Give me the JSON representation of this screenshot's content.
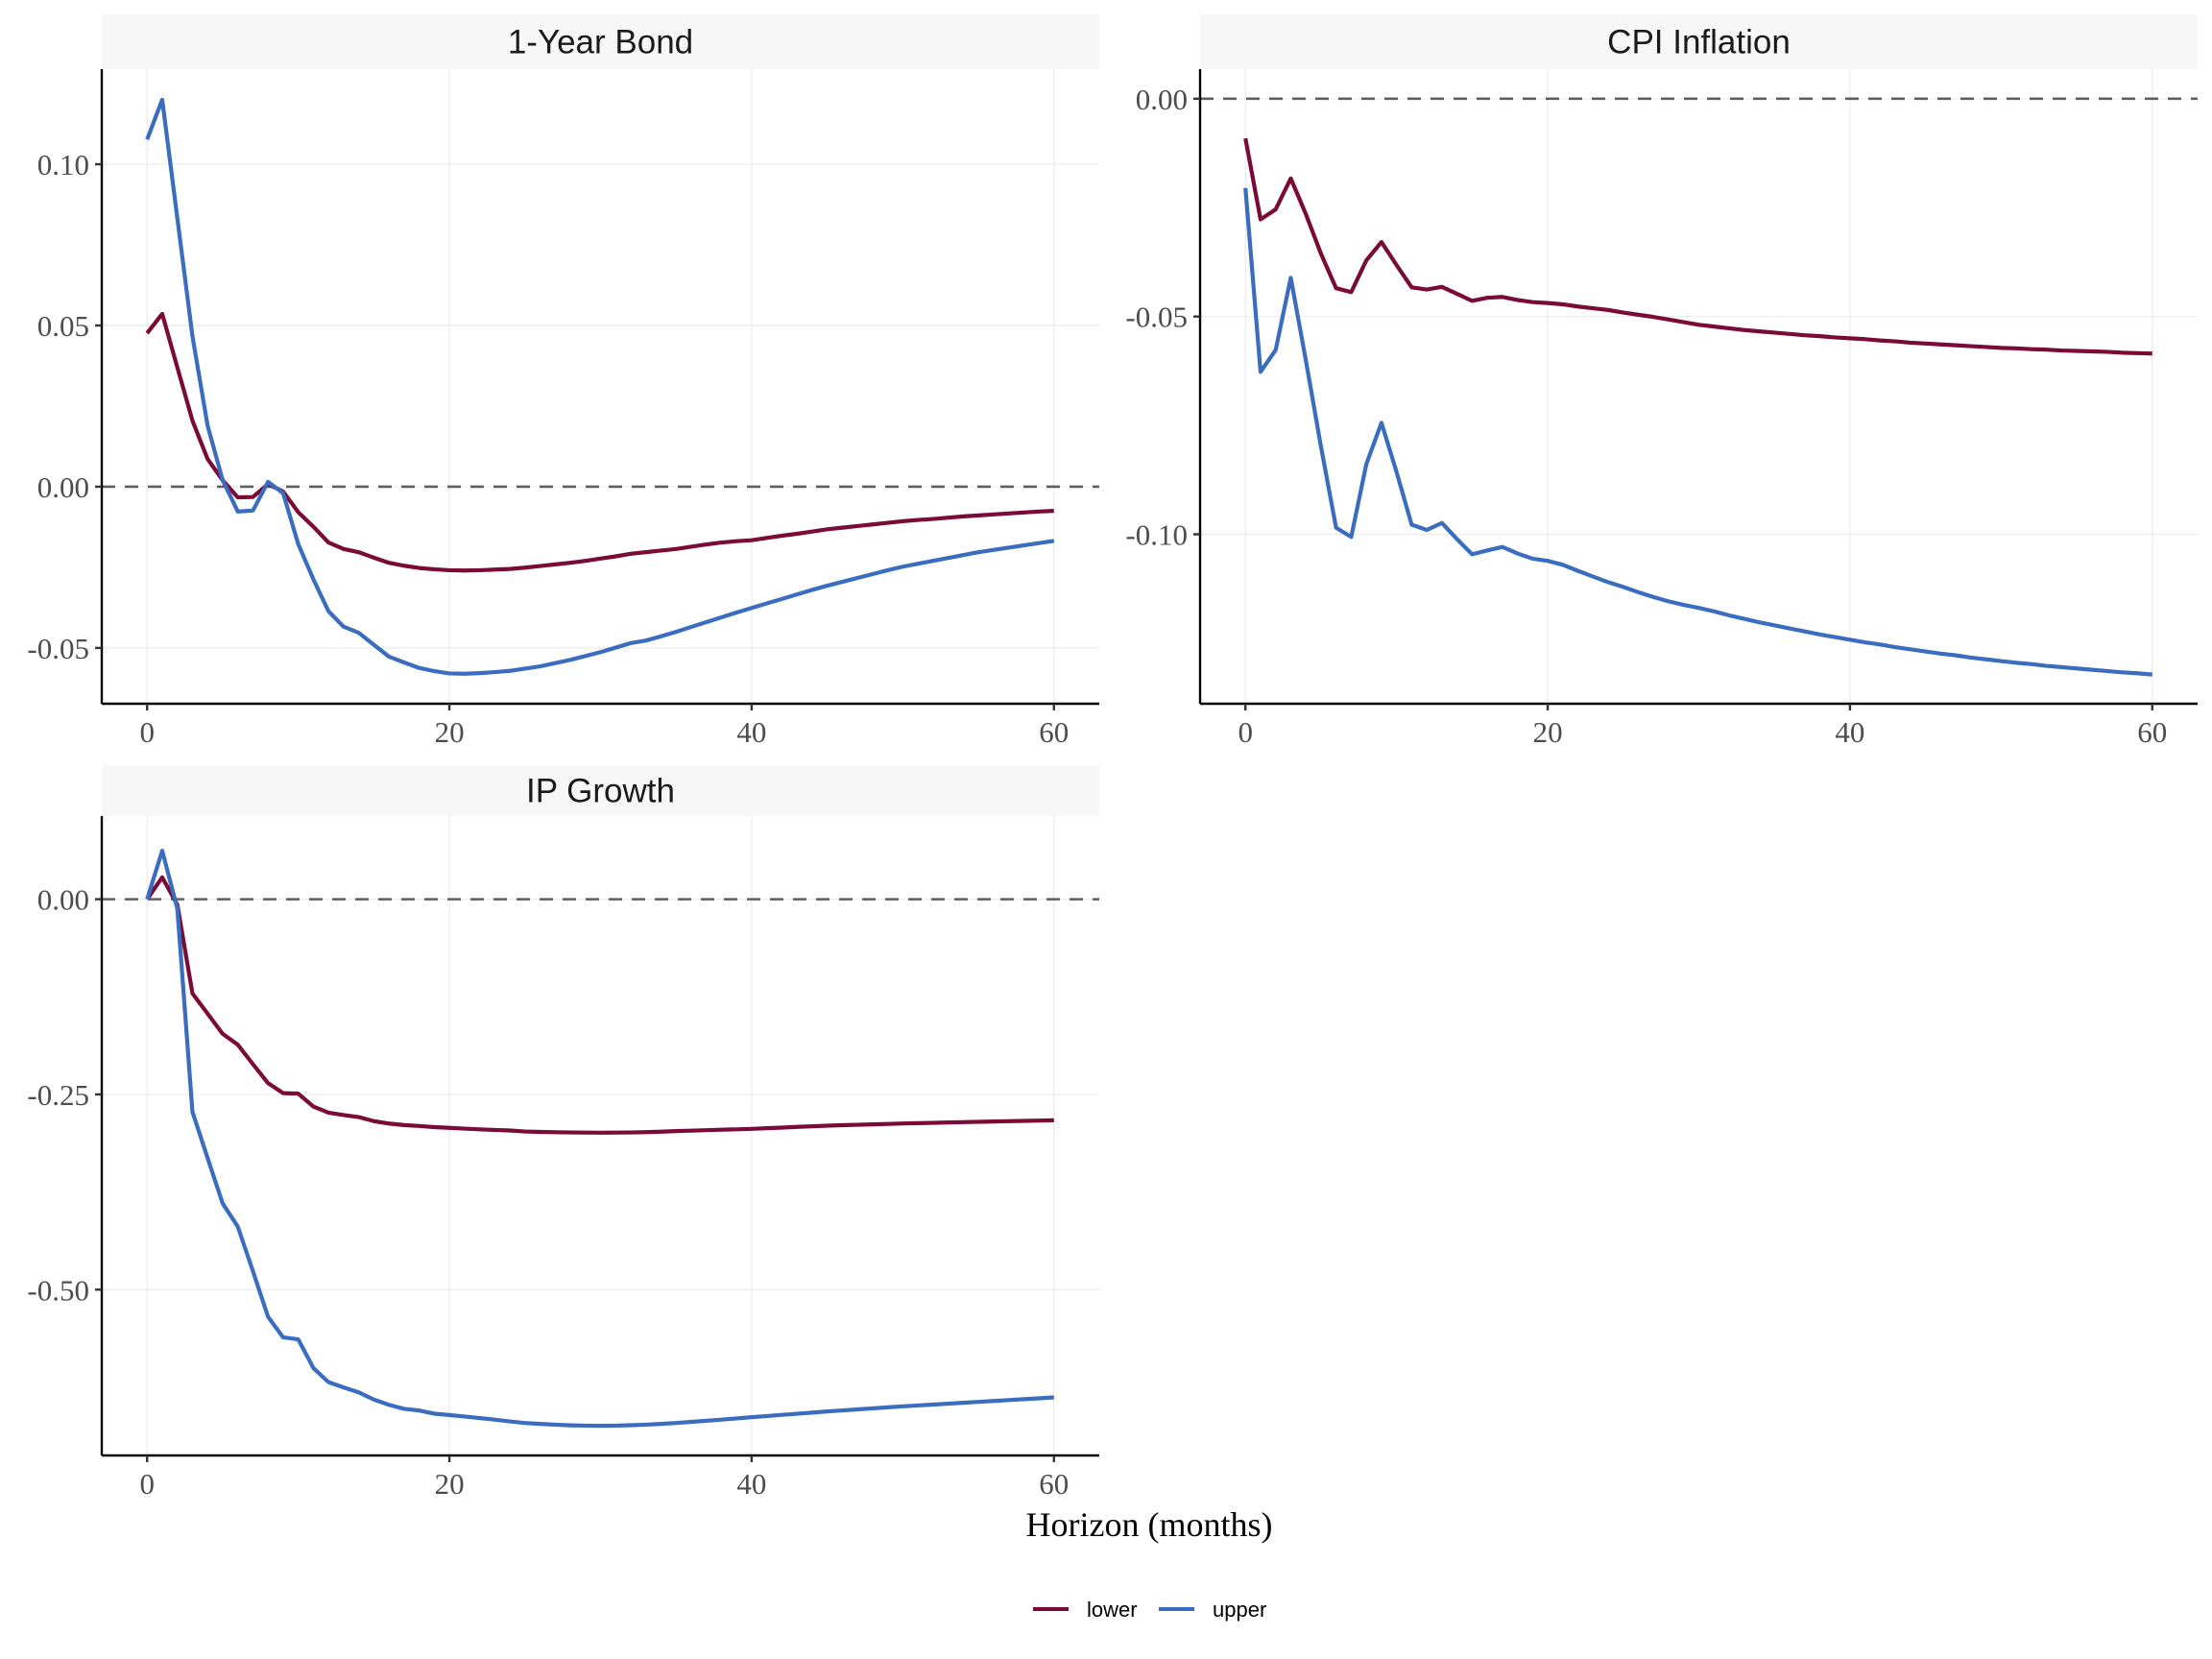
{
  "chart_data": [
    {
      "type": "line",
      "title": "1-Year Bond",
      "xlabel": "Horizon (months)",
      "ylabel": "",
      "xlim": [
        -3,
        63
      ],
      "ylim": [
        -0.0673,
        0.1295
      ],
      "xticks": [
        0,
        20,
        40,
        60
      ],
      "xtick_labels": [
        "0",
        "20",
        "40",
        "60"
      ],
      "yticks": [
        -0.05,
        0.0,
        0.05,
        0.1
      ],
      "ytick_labels": [
        "-0.05",
        "0.00",
        "0.05",
        "0.10"
      ],
      "grid": true,
      "reference_line": 0,
      "x": [
        0,
        1,
        2,
        3,
        4,
        5,
        6,
        7,
        8,
        9,
        10,
        11,
        12,
        13,
        14,
        15,
        16,
        17,
        18,
        19,
        20,
        21,
        22,
        23,
        24,
        25,
        26,
        27,
        28,
        29,
        30,
        31,
        32,
        33,
        34,
        35,
        36,
        37,
        38,
        39,
        40,
        41,
        42,
        43,
        44,
        45,
        46,
        47,
        48,
        49,
        50,
        51,
        52,
        53,
        54,
        55,
        56,
        57,
        58,
        59,
        60
      ],
      "series": [
        {
          "name": "lower",
          "color": "#7A0A36",
          "values": [
            0.0476,
            0.0536,
            0.037,
            0.0205,
            0.0086,
            0.002,
            -0.0033,
            -0.0032,
            0.0008,
            -0.0015,
            -0.0079,
            -0.0124,
            -0.0173,
            -0.0193,
            -0.0203,
            -0.022,
            -0.0236,
            -0.0245,
            -0.0252,
            -0.0256,
            -0.0259,
            -0.026,
            -0.0259,
            -0.0257,
            -0.0255,
            -0.0251,
            -0.0246,
            -0.0241,
            -0.0236,
            -0.023,
            -0.0223,
            -0.0216,
            -0.0208,
            -0.0203,
            -0.0198,
            -0.0193,
            -0.0186,
            -0.0179,
            -0.0173,
            -0.0169,
            -0.0166,
            -0.0159,
            -0.0152,
            -0.0146,
            -0.0139,
            -0.0132,
            -0.0127,
            -0.0122,
            -0.0117,
            -0.0112,
            -0.0107,
            -0.0103,
            -0.01,
            -0.0096,
            -0.0092,
            -0.0089,
            -0.0086,
            -0.0083,
            -0.008,
            -0.0077,
            -0.0075
          ]
        },
        {
          "name": "upper",
          "color": "#3A6DBF",
          "values": [
            0.1077,
            0.12,
            0.0833,
            0.0467,
            0.019,
            0.002,
            -0.0077,
            -0.0074,
            0.0015,
            -0.002,
            -0.0178,
            -0.0287,
            -0.0386,
            -0.0434,
            -0.0453,
            -0.049,
            -0.0527,
            -0.0545,
            -0.0562,
            -0.0572,
            -0.0579,
            -0.058,
            -0.0578,
            -0.0575,
            -0.0571,
            -0.0564,
            -0.0557,
            -0.0547,
            -0.0537,
            -0.0525,
            -0.0513,
            -0.0499,
            -0.0485,
            -0.0477,
            -0.0464,
            -0.045,
            -0.0435,
            -0.042,
            -0.0405,
            -0.039,
            -0.0376,
            -0.0362,
            -0.0348,
            -0.0334,
            -0.032,
            -0.0307,
            -0.0295,
            -0.0283,
            -0.0271,
            -0.0259,
            -0.0248,
            -0.0239,
            -0.023,
            -0.0221,
            -0.0212,
            -0.0203,
            -0.0196,
            -0.0189,
            -0.0182,
            -0.0175,
            -0.0168
          ]
        }
      ]
    },
    {
      "type": "line",
      "title": "CPI Inflation",
      "xlabel": "Horizon (months)",
      "ylabel": "",
      "xlim": [
        -3,
        63
      ],
      "ylim": [
        -0.1389,
        0.0068
      ],
      "xticks": [
        0,
        20,
        40,
        60
      ],
      "xtick_labels": [
        "0",
        "20",
        "40",
        "60"
      ],
      "yticks": [
        -0.1,
        -0.05,
        0.0
      ],
      "ytick_labels": [
        "-0.10",
        "-0.05",
        "0.00"
      ],
      "grid": true,
      "reference_line": 0,
      "x": [
        0,
        1,
        2,
        3,
        4,
        5,
        6,
        7,
        8,
        9,
        10,
        11,
        12,
        13,
        14,
        15,
        16,
        17,
        18,
        19,
        20,
        21,
        22,
        23,
        24,
        25,
        26,
        27,
        28,
        29,
        30,
        31,
        32,
        33,
        34,
        35,
        36,
        37,
        38,
        39,
        40,
        41,
        42,
        43,
        44,
        45,
        46,
        47,
        48,
        49,
        50,
        51,
        52,
        53,
        54,
        55,
        56,
        57,
        58,
        59,
        60
      ],
      "series": [
        {
          "name": "lower",
          "color": "#7A0A36",
          "values": [
            -0.0091,
            -0.0277,
            -0.0254,
            -0.0183,
            -0.0265,
            -0.0356,
            -0.0435,
            -0.0444,
            -0.0371,
            -0.0329,
            -0.0382,
            -0.0433,
            -0.0438,
            -0.0432,
            -0.0448,
            -0.0464,
            -0.0457,
            -0.0455,
            -0.0462,
            -0.0467,
            -0.0469,
            -0.0472,
            -0.0477,
            -0.0481,
            -0.0485,
            -0.0491,
            -0.0496,
            -0.0501,
            -0.0507,
            -0.0513,
            -0.0519,
            -0.0523,
            -0.0527,
            -0.0531,
            -0.0534,
            -0.0537,
            -0.054,
            -0.0543,
            -0.0545,
            -0.0548,
            -0.055,
            -0.0552,
            -0.0555,
            -0.0557,
            -0.056,
            -0.0562,
            -0.0564,
            -0.0566,
            -0.0568,
            -0.057,
            -0.0572,
            -0.0573,
            -0.0575,
            -0.0576,
            -0.0578,
            -0.0579,
            -0.058,
            -0.0581,
            -0.0583,
            -0.0584,
            -0.0585
          ]
        },
        {
          "name": "upper",
          "color": "#3A6DBF",
          "values": [
            -0.0205,
            -0.0627,
            -0.0577,
            -0.0411,
            -0.0601,
            -0.0799,
            -0.0985,
            -0.1006,
            -0.0839,
            -0.0744,
            -0.0857,
            -0.0978,
            -0.099,
            -0.0974,
            -0.1011,
            -0.1046,
            -0.1037,
            -0.1029,
            -0.1044,
            -0.1056,
            -0.1061,
            -0.107,
            -0.1084,
            -0.1097,
            -0.111,
            -0.1121,
            -0.1133,
            -0.1144,
            -0.1154,
            -0.1162,
            -0.1169,
            -0.1177,
            -0.1186,
            -0.1194,
            -0.1202,
            -0.1209,
            -0.1216,
            -0.1223,
            -0.123,
            -0.1236,
            -0.1242,
            -0.1248,
            -0.1253,
            -0.1259,
            -0.1264,
            -0.1269,
            -0.1274,
            -0.1278,
            -0.1283,
            -0.1287,
            -0.1291,
            -0.1295,
            -0.1298,
            -0.1302,
            -0.1305,
            -0.1308,
            -0.1311,
            -0.1314,
            -0.1317,
            -0.1319,
            -0.1322
          ]
        }
      ]
    },
    {
      "type": "line",
      "title": "IP Growth",
      "xlabel": "Horizon (months)",
      "ylabel": "",
      "xlim": [
        -3,
        63
      ],
      "ylim": [
        -0.7124,
        0.1065
      ],
      "xticks": [
        0,
        20,
        40,
        60
      ],
      "xtick_labels": [
        "0",
        "20",
        "40",
        "60"
      ],
      "yticks": [
        -0.5,
        -0.25,
        0.0
      ],
      "ytick_labels": [
        "-0.50",
        "-0.25",
        "0.00"
      ],
      "grid": true,
      "reference_line": 0,
      "x": [
        0,
        1,
        2,
        3,
        4,
        5,
        6,
        7,
        8,
        9,
        10,
        11,
        12,
        13,
        14,
        15,
        16,
        17,
        18,
        19,
        20,
        21,
        22,
        23,
        24,
        25,
        26,
        27,
        28,
        29,
        30,
        31,
        32,
        33,
        34,
        35,
        36,
        37,
        38,
        39,
        40,
        41,
        42,
        43,
        44,
        45,
        46,
        47,
        48,
        49,
        50,
        51,
        52,
        53,
        54,
        55,
        56,
        57,
        58,
        59,
        60
      ],
      "series": [
        {
          "name": "lower",
          "color": "#7A0A36",
          "values": [
            0,
            0.028,
            -0.007,
            -0.1206,
            -0.1465,
            -0.1724,
            -0.1863,
            -0.2112,
            -0.2355,
            -0.2484,
            -0.249,
            -0.2655,
            -0.2733,
            -0.2764,
            -0.279,
            -0.2842,
            -0.2873,
            -0.2893,
            -0.2904,
            -0.2919,
            -0.2928,
            -0.2938,
            -0.2947,
            -0.2955,
            -0.2962,
            -0.2975,
            -0.298,
            -0.2984,
            -0.2987,
            -0.2989,
            -0.299,
            -0.2989,
            -0.2987,
            -0.2983,
            -0.2977,
            -0.297,
            -0.2964,
            -0.2958,
            -0.2952,
            -0.2947,
            -0.2941,
            -0.2933,
            -0.2925,
            -0.2916,
            -0.2908,
            -0.29,
            -0.2894,
            -0.2889,
            -0.2883,
            -0.2878,
            -0.2872,
            -0.2868,
            -0.2864,
            -0.2859,
            -0.2855,
            -0.2851,
            -0.2847,
            -0.2843,
            -0.2839,
            -0.2835,
            -0.2831
          ]
        },
        {
          "name": "upper",
          "color": "#3A6DBF",
          "values": [
            0,
            0.0621,
            -0.0119,
            -0.2723,
            -0.3313,
            -0.3897,
            -0.4193,
            -0.4762,
            -0.5347,
            -0.5611,
            -0.5637,
            -0.6004,
            -0.6185,
            -0.6253,
            -0.6315,
            -0.6408,
            -0.6475,
            -0.6527,
            -0.6548,
            -0.6589,
            -0.6606,
            -0.6625,
            -0.6645,
            -0.6665,
            -0.6688,
            -0.6708,
            -0.672,
            -0.673,
            -0.6738,
            -0.6742,
            -0.6744,
            -0.6742,
            -0.6737,
            -0.673,
            -0.672,
            -0.6708,
            -0.6694,
            -0.668,
            -0.6665,
            -0.665,
            -0.6634,
            -0.6619,
            -0.6604,
            -0.659,
            -0.6575,
            -0.656,
            -0.6547,
            -0.6534,
            -0.6521,
            -0.6508,
            -0.6495,
            -0.6484,
            -0.6472,
            -0.6461,
            -0.6449,
            -0.6438,
            -0.6426,
            -0.6415,
            -0.6403,
            -0.6392,
            -0.638
          ]
        }
      ]
    }
  ],
  "shared": {
    "xlabel": "Horizon (months)",
    "legend": {
      "position": "bottom",
      "items": [
        {
          "label": "lower",
          "color": "#7A0A36"
        },
        {
          "label": "upper",
          "color": "#3A6DBF"
        }
      ]
    }
  }
}
